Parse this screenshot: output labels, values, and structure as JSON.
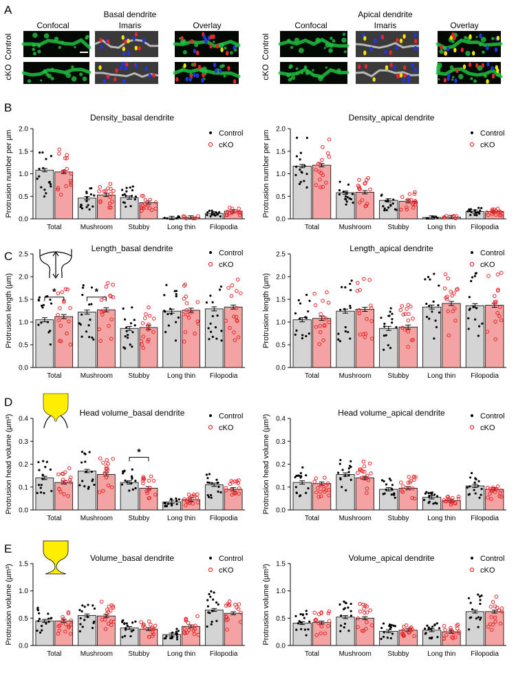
{
  "panel_labels": [
    "A",
    "B",
    "C",
    "D",
    "E"
  ],
  "colors": {
    "control_bar": "#d4d4d4",
    "cko_bar": "#f4a3a3",
    "cko_point": "#e8262a",
    "spine_blue": "#2335e0",
    "spine_red": "#e8262a",
    "spine_yellow": "#f5e400",
    "dendrite_green": "#20c040",
    "head_yellow": "#ffee00"
  },
  "panel_a": {
    "groups": [
      {
        "title": "Basal dendrite",
        "columns": [
          "Confocal",
          "Imaris",
          "Overlay"
        ]
      },
      {
        "title": "Apical dendrite",
        "columns": [
          "Confocal",
          "Imaris",
          "Overlay"
        ]
      }
    ],
    "row_labels": [
      "Control",
      "cKO"
    ]
  },
  "chart_data": [
    {
      "id": "B-basal",
      "type": "bar",
      "title": "Density_basal dendrite",
      "ylabel": "Protrusion number per µm",
      "ylim": [
        0,
        2.0
      ],
      "yticks": [
        "0.0",
        "0.5",
        "1.0",
        "1.5",
        "2.0"
      ],
      "categories": [
        "Total",
        "Mushroom",
        "Stubby",
        "Long thin",
        "Filopodia"
      ],
      "series": [
        {
          "name": "Control",
          "values": [
            1.08,
            0.46,
            0.47,
            0.02,
            0.12
          ]
        },
        {
          "name": "cKO",
          "values": [
            1.04,
            0.53,
            0.36,
            0.03,
            0.17
          ]
        }
      ],
      "legend": [
        "Control",
        "cKO"
      ],
      "significance": []
    },
    {
      "id": "B-apical",
      "type": "bar",
      "title": "Density_apical dendrite",
      "ylabel": "Protrusion number per µm",
      "ylim": [
        0,
        2.0
      ],
      "yticks": [
        "0.0",
        "0.5",
        "1.0",
        "1.5",
        "2.0"
      ],
      "categories": [
        "Total",
        "Mushroom",
        "Stubby",
        "Long thin",
        "Filopodia"
      ],
      "series": [
        {
          "name": "Control",
          "values": [
            1.17,
            0.58,
            0.41,
            0.03,
            0.16
          ]
        },
        {
          "name": "cKO",
          "values": [
            1.19,
            0.59,
            0.39,
            0.04,
            0.16
          ]
        }
      ],
      "legend": [
        "Control",
        "cKO"
      ],
      "significance": []
    },
    {
      "id": "C-basal",
      "type": "bar",
      "title": "Length_basal dendrite",
      "ylabel": "Protrusion length (µm)",
      "ylim": [
        0,
        2.5
      ],
      "yticks": [
        "0.0",
        "0.5",
        "1.0",
        "1.5",
        "2.0",
        "2.5"
      ],
      "categories": [
        "Total",
        "Mushroom",
        "Stubby",
        "Long thin",
        "Filopodia"
      ],
      "series": [
        {
          "name": "Control",
          "values": [
            1.05,
            1.22,
            0.86,
            1.24,
            1.29
          ]
        },
        {
          "name": "cKO",
          "values": [
            1.12,
            1.27,
            0.88,
            1.26,
            1.33
          ]
        }
      ],
      "legend": [
        "Control",
        "cKO"
      ],
      "significance": [
        {
          "category": "Total",
          "label": "*",
          "y": 1.55
        },
        {
          "category": "Mushroom",
          "label": "*",
          "y": 1.55
        }
      ]
    },
    {
      "id": "C-apical",
      "type": "bar",
      "title": "Length_apical dendrite",
      "ylabel": "Protrusion length (µm)",
      "ylim": [
        0,
        2.5
      ],
      "yticks": [
        "0.0",
        "0.5",
        "1.0",
        "1.5",
        "2.0",
        "2.5"
      ],
      "categories": [
        "Total",
        "Mushroom",
        "Stubby",
        "Long thin",
        "Filopodia"
      ],
      "series": [
        {
          "name": "Control",
          "values": [
            1.05,
            1.24,
            0.86,
            1.33,
            1.36
          ]
        },
        {
          "name": "cKO",
          "values": [
            1.08,
            1.28,
            0.89,
            1.41,
            1.37
          ]
        }
      ],
      "legend": [
        "Control",
        "cKO"
      ],
      "significance": []
    },
    {
      "id": "D-basal",
      "type": "bar",
      "title": "Head volume_basal dendrite",
      "ylabel": "Protrusion head volume (µm³)",
      "ylim": [
        0,
        0.4
      ],
      "yticks": [
        "0.0",
        "0.1",
        "0.2",
        "0.3",
        "0.4"
      ],
      "categories": [
        "Total",
        "Mushroom",
        "Stubby",
        "Long thin",
        "Filopodia"
      ],
      "series": [
        {
          "name": "Control",
          "values": [
            0.14,
            0.17,
            0.12,
            0.035,
            0.11
          ]
        },
        {
          "name": "cKO",
          "values": [
            0.12,
            0.155,
            0.095,
            0.045,
            0.09
          ]
        }
      ],
      "legend": [
        "Control",
        "cKO"
      ],
      "significance": [
        {
          "category": "Stubby",
          "label": "*",
          "y": 0.23
        }
      ]
    },
    {
      "id": "D-apical",
      "type": "bar",
      "title": "Head volume_apical dendrite",
      "ylabel": "Protrusion head volume (µm³)",
      "ylim": [
        0,
        0.4
      ],
      "yticks": [
        "0.0",
        "0.1",
        "0.2",
        "0.3",
        "0.4"
      ],
      "categories": [
        "Total",
        "Mushroom",
        "Stubby",
        "Long thin",
        "Filopodia"
      ],
      "series": [
        {
          "name": "Control",
          "values": [
            0.12,
            0.155,
            0.09,
            0.055,
            0.105
          ]
        },
        {
          "name": "cKO",
          "values": [
            0.115,
            0.14,
            0.095,
            0.04,
            0.09
          ]
        }
      ],
      "legend": [
        "Control",
        "cKO"
      ],
      "significance": []
    },
    {
      "id": "E-basal",
      "type": "bar",
      "title": "Volume_basal dendrite",
      "ylabel": "Protrusion volume (µm³)",
      "ylim": [
        0,
        1.5
      ],
      "yticks": [
        "0.0",
        "0.5",
        "1.0",
        "1.5"
      ],
      "categories": [
        "Total",
        "Mushroom",
        "Stubby",
        "Long thin",
        "Filopodia"
      ],
      "series": [
        {
          "name": "Control",
          "values": [
            0.45,
            0.55,
            0.32,
            0.2,
            0.65
          ]
        },
        {
          "name": "cKO",
          "values": [
            0.45,
            0.54,
            0.3,
            0.35,
            0.59
          ]
        }
      ],
      "legend": [
        "Control",
        "cKO"
      ],
      "significance": []
    },
    {
      "id": "E-apical",
      "type": "bar",
      "title": "Volume_apical dendrite",
      "ylabel": "Protrusion volume (µm³)",
      "ylim": [
        0,
        1.5
      ],
      "yticks": [
        "0.0",
        "0.5",
        "1.0",
        "1.5"
      ],
      "categories": [
        "Total",
        "Mushroom",
        "Stubby",
        "Long thin",
        "Filopodia"
      ],
      "series": [
        {
          "name": "Control",
          "values": [
            0.41,
            0.52,
            0.26,
            0.28,
            0.62
          ]
        },
        {
          "name": "cKO",
          "values": [
            0.42,
            0.5,
            0.28,
            0.25,
            0.62
          ]
        }
      ],
      "legend": [
        "Control",
        "cKO"
      ],
      "significance": []
    }
  ]
}
